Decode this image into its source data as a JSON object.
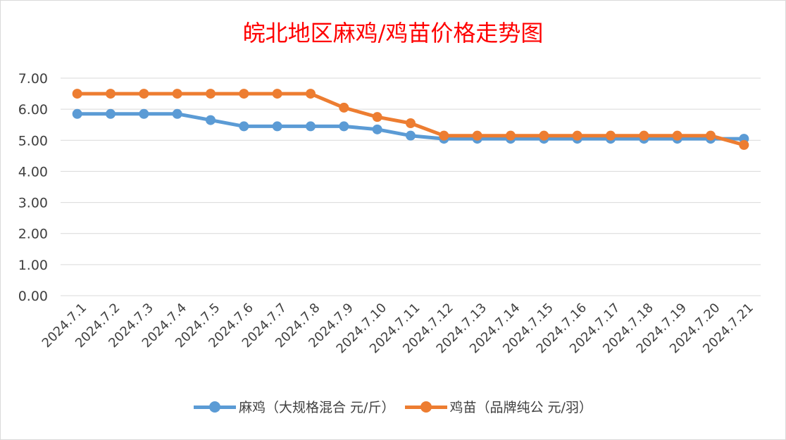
{
  "chart_data": {
    "type": "line",
    "title": "皖北地区麻鸡/鸡苗价格走势图",
    "categories": [
      "2024.7.1",
      "2024.7.2",
      "2024.7.3",
      "2024.7.4",
      "2024.7.5",
      "2024.7.6",
      "2024.7.7",
      "2024.7.8",
      "2024.7.9",
      "2024.7.10",
      "2024.7.11",
      "2024.7.12",
      "2024.7.13",
      "2024.7.14",
      "2024.7.15",
      "2024.7.16",
      "2024.7.17",
      "2024.7.18",
      "2024.7.19",
      "2024.7.20",
      "2024.7.21"
    ],
    "series": [
      {
        "name": "麻鸡（大规格混合 元/斤）",
        "color": "#5b9bd5",
        "values": [
          5.85,
          5.85,
          5.85,
          5.85,
          5.65,
          5.45,
          5.45,
          5.45,
          5.45,
          5.35,
          5.15,
          5.05,
          5.05,
          5.05,
          5.05,
          5.05,
          5.05,
          5.05,
          5.05,
          5.05,
          5.05
        ]
      },
      {
        "name": "鸡苗（品牌纯公 元/羽）",
        "color": "#ed7d31",
        "values": [
          6.5,
          6.5,
          6.5,
          6.5,
          6.5,
          6.5,
          6.5,
          6.5,
          6.05,
          5.75,
          5.55,
          5.15,
          5.15,
          5.15,
          5.15,
          5.15,
          5.15,
          5.15,
          5.15,
          5.15,
          4.85
        ]
      }
    ],
    "ylim": [
      0,
      7
    ],
    "yticks": [
      "0.00",
      "1.00",
      "2.00",
      "3.00",
      "4.00",
      "5.00",
      "6.00",
      "7.00"
    ],
    "grid": true,
    "legend_position": "bottom",
    "xlabel": "",
    "ylabel": ""
  }
}
